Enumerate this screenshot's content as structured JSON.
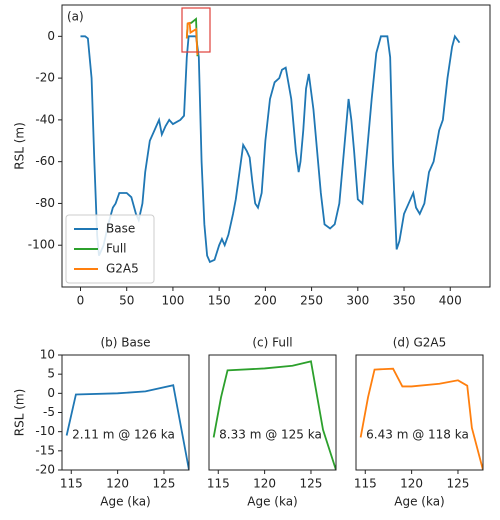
{
  "chart_data": [
    {
      "type": "line",
      "label": "(a)",
      "ylabel": "RSL (m)",
      "xlim": [
        -20,
        443
      ],
      "ylim": [
        -120,
        15
      ],
      "xticks": [
        0,
        50,
        100,
        150,
        200,
        250,
        300,
        350,
        400
      ],
      "yticks": [
        -100,
        -80,
        -60,
        -40,
        -20,
        0
      ],
      "legend": "lower left",
      "series": [
        {
          "name": "Base",
          "color": "#1f77b4",
          "x": [
            0,
            5,
            8,
            12,
            15,
            18,
            20,
            25,
            30,
            35,
            38,
            42,
            50,
            55,
            60,
            63,
            67,
            70,
            75,
            80,
            85,
            88,
            92,
            96,
            100,
            108,
            112,
            115,
            117,
            125,
            128,
            131,
            134,
            137,
            140,
            145,
            150,
            153,
            156,
            160,
            165,
            168,
            172,
            176,
            180,
            183,
            186,
            189,
            192,
            196,
            200,
            205,
            210,
            215,
            218,
            222,
            228,
            233,
            236,
            238,
            241,
            244,
            247,
            252,
            257,
            260,
            264,
            270,
            275,
            280,
            284,
            287,
            290,
            293,
            296,
            300,
            305,
            310,
            315,
            320,
            325,
            332,
            335,
            338,
            342,
            345,
            350,
            355,
            360,
            363,
            367,
            372,
            377,
            382,
            388,
            392,
            397,
            402,
            405,
            410
          ],
          "values": [
            0,
            0,
            -1,
            -20,
            -60,
            -95,
            -105,
            -100,
            -90,
            -82,
            -80,
            -75,
            -75,
            -77,
            -85,
            -88,
            -80,
            -65,
            -50,
            -45,
            -40,
            -47,
            -43,
            -40,
            -42,
            -40,
            -38,
            -10,
            0,
            0,
            -10,
            -60,
            -90,
            -105,
            -108,
            -107,
            -100,
            -97,
            -100,
            -95,
            -85,
            -78,
            -65,
            -52,
            -55,
            -58,
            -70,
            -80,
            -82,
            -75,
            -50,
            -30,
            -22,
            -20,
            -16,
            -15,
            -30,
            -55,
            -65,
            -60,
            -45,
            -25,
            -18,
            -35,
            -60,
            -75,
            -90,
            -92,
            -90,
            -80,
            -60,
            -45,
            -30,
            -40,
            -55,
            -78,
            -80,
            -55,
            -30,
            -8,
            0,
            0,
            -10,
            -60,
            -102,
            -98,
            -85,
            -80,
            -75,
            -82,
            -85,
            -80,
            -65,
            -60,
            -45,
            -40,
            -20,
            -5,
            0,
            -3
          ]
        },
        {
          "name": "Full",
          "color": "#2ca02c",
          "x": [
            115,
            116,
            120,
            125,
            126.5
          ],
          "values": [
            -1,
            6,
            6.5,
            8.33,
            -9.5
          ]
        },
        {
          "name": "G2A5",
          "color": "#ff7f0e",
          "x": [
            115,
            116,
            118,
            119,
            125,
            126.5
          ],
          "values": [
            -1,
            6.2,
            6.43,
            1.8,
            3.4,
            -9
          ]
        }
      ]
    },
    {
      "type": "line",
      "title": "(b) Base",
      "xlabel": "Age (ka)",
      "ylabel": "RSL (m)",
      "annotation": "2.11 m @ 126 ka",
      "xlim": [
        114,
        127.7
      ],
      "ylim": [
        -20,
        10
      ],
      "xticks": [
        115,
        120,
        125
      ],
      "yticks": [
        -20,
        -15,
        -10,
        -5,
        0,
        5,
        10
      ],
      "series": [
        {
          "color": "#1f77b4",
          "x": [
            114.5,
            115.5,
            120,
            123,
            126,
            127.7
          ],
          "values": [
            -11,
            -0.3,
            0,
            0.5,
            2.11,
            -20
          ]
        }
      ]
    },
    {
      "type": "line",
      "title": "(c) Full",
      "xlabel": "Age (ka)",
      "annotation": "8.33 m @ 125 ka",
      "xlim": [
        114,
        127.7
      ],
      "ylim": [
        -20,
        10
      ],
      "xticks": [
        115,
        120,
        125
      ],
      "series": [
        {
          "color": "#2ca02c",
          "x": [
            114.5,
            115.3,
            116,
            120,
            123,
            125,
            126.3,
            127.7
          ],
          "values": [
            -11.5,
            -1,
            6,
            6.5,
            7.2,
            8.33,
            -9.5,
            -20
          ]
        }
      ]
    },
    {
      "type": "line",
      "title": "(d) G2A5",
      "xlabel": "Age (ka)",
      "annotation": "6.43 m @ 118 ka",
      "xlim": [
        114,
        127.7
      ],
      "ylim": [
        -20,
        10
      ],
      "xticks": [
        115,
        120,
        125
      ],
      "series": [
        {
          "color": "#ff7f0e",
          "x": [
            114.5,
            115.3,
            116,
            118,
            119,
            120,
            123,
            125,
            126,
            126.5,
            127.7
          ],
          "values": [
            -11.5,
            -1,
            6.2,
            6.43,
            1.8,
            1.8,
            2.5,
            3.4,
            2,
            -9,
            -20
          ]
        }
      ]
    }
  ]
}
